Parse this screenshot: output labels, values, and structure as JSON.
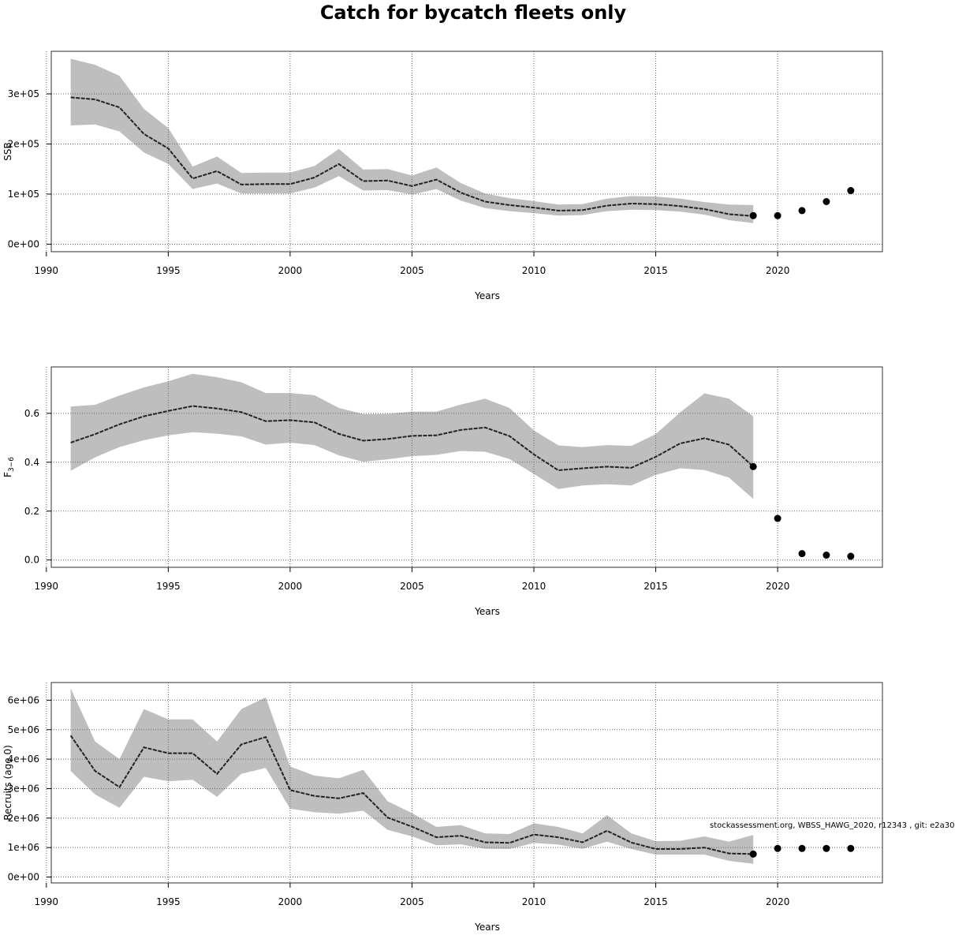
{
  "title": "Catch for bycatch fleets only",
  "credit": "stockassessment.org, WBSS_HAWG_2020, r12343 , git: e2a30",
  "colors": {
    "band": "#bebebe",
    "line": "#222222",
    "grid": "#666666",
    "frame": "#333333"
  },
  "chart_data": [
    {
      "type": "line",
      "name": "ssb",
      "xlabel": "Years",
      "ylabel": "SSB",
      "xlim": [
        1990.2,
        2024.3
      ],
      "ylim": [
        -15000,
        385000
      ],
      "xticks": [
        1990,
        1995,
        2000,
        2005,
        2010,
        2015,
        2020
      ],
      "xtick_labels": [
        "1990",
        "1995",
        "2000",
        "2005",
        "2010",
        "2015",
        "2020"
      ],
      "yticks": [
        0,
        100000,
        200000,
        300000
      ],
      "ytick_labels": [
        "0e+00",
        "1e+05",
        "2e+05",
        "3e+05"
      ],
      "grid": true,
      "x": [
        1991,
        1992,
        1993,
        1994,
        1995,
        1996,
        1997,
        1998,
        1999,
        2000,
        2001,
        2002,
        2003,
        2004,
        2005,
        2006,
        2007,
        2008,
        2009,
        2010,
        2011,
        2012,
        2013,
        2014,
        2015,
        2016,
        2017,
        2018,
        2019
      ],
      "estimate": [
        293000,
        289000,
        273000,
        220000,
        191000,
        131000,
        146000,
        119000,
        120000,
        120000,
        133000,
        160000,
        126000,
        127000,
        116000,
        129000,
        103000,
        85000,
        78000,
        73000,
        67000,
        68000,
        77000,
        81000,
        80000,
        76000,
        70000,
        60000,
        56000
      ],
      "lower": [
        237000,
        239000,
        225000,
        183000,
        160000,
        110000,
        121000,
        101000,
        101000,
        101000,
        113000,
        136000,
        107000,
        108000,
        99000,
        110000,
        87000,
        72000,
        66000,
        62000,
        57000,
        58000,
        66000,
        69000,
        68000,
        65000,
        59000,
        48000,
        42000
      ],
      "upper": [
        370000,
        358000,
        336000,
        270000,
        232000,
        155000,
        175000,
        142000,
        143000,
        143000,
        156000,
        190000,
        149000,
        150000,
        137000,
        153000,
        122000,
        101000,
        92000,
        86000,
        79000,
        80000,
        91000,
        96000,
        95000,
        91000,
        84000,
        79000,
        78000
      ],
      "forecast_x": [
        2019,
        2020,
        2021,
        2022,
        2023
      ],
      "forecast_y": [
        57000,
        57000,
        67000,
        85000,
        107000
      ]
    },
    {
      "type": "line",
      "name": "fbar",
      "xlabel": "Years",
      "ylabel": "F",
      "ylabel_sub": "3−6",
      "xlim": [
        1990.2,
        2024.3
      ],
      "ylim": [
        -0.03,
        0.79
      ],
      "xticks": [
        1990,
        1995,
        2000,
        2005,
        2010,
        2015,
        2020
      ],
      "xtick_labels": [
        "1990",
        "1995",
        "2000",
        "2005",
        "2010",
        "2015",
        "2020"
      ],
      "yticks": [
        0,
        0.2,
        0.4,
        0.6
      ],
      "ytick_labels": [
        "0.0",
        "0.2",
        "0.4",
        "0.6"
      ],
      "grid": true,
      "x": [
        1991,
        1992,
        1993,
        1994,
        1995,
        1996,
        1997,
        1998,
        1999,
        2000,
        2001,
        2002,
        2003,
        2004,
        2005,
        2006,
        2007,
        2008,
        2009,
        2010,
        2011,
        2012,
        2013,
        2014,
        2015,
        2016,
        2017,
        2018,
        2019
      ],
      "estimate": [
        0.48,
        0.515,
        0.555,
        0.588,
        0.61,
        0.63,
        0.62,
        0.605,
        0.568,
        0.572,
        0.563,
        0.516,
        0.488,
        0.495,
        0.508,
        0.51,
        0.532,
        0.542,
        0.507,
        0.432,
        0.367,
        0.375,
        0.382,
        0.377,
        0.422,
        0.477,
        0.498,
        0.472,
        0.382
      ],
      "lower": [
        0.365,
        0.42,
        0.462,
        0.49,
        0.51,
        0.523,
        0.517,
        0.506,
        0.472,
        0.48,
        0.47,
        0.428,
        0.402,
        0.412,
        0.425,
        0.43,
        0.446,
        0.443,
        0.413,
        0.352,
        0.29,
        0.305,
        0.31,
        0.305,
        0.348,
        0.375,
        0.368,
        0.337,
        0.25
      ],
      "upper": [
        0.628,
        0.635,
        0.673,
        0.706,
        0.731,
        0.762,
        0.748,
        0.727,
        0.683,
        0.683,
        0.674,
        0.622,
        0.597,
        0.598,
        0.607,
        0.607,
        0.636,
        0.66,
        0.622,
        0.53,
        0.469,
        0.462,
        0.47,
        0.467,
        0.515,
        0.604,
        0.682,
        0.66,
        0.588
      ],
      "forecast_x": [
        2019,
        2020,
        2021,
        2022,
        2023
      ],
      "forecast_y": [
        0.382,
        0.17,
        0.026,
        0.02,
        0.015
      ]
    },
    {
      "type": "line",
      "name": "recruits",
      "xlabel": "Years",
      "ylabel": "Recruits (age 0)",
      "xlim": [
        1990.2,
        2024.3
      ],
      "ylim": [
        -200000,
        6600000
      ],
      "xticks": [
        1990,
        1995,
        2000,
        2005,
        2010,
        2015,
        2020
      ],
      "xtick_labels": [
        "1990",
        "1995",
        "2000",
        "2005",
        "2010",
        "2015",
        "2020"
      ],
      "yticks": [
        0,
        1000000,
        2000000,
        3000000,
        4000000,
        5000000,
        6000000
      ],
      "ytick_labels": [
        "0e+00",
        "1e+06",
        "2e+06",
        "3e+06",
        "4e+06",
        "5e+06",
        "6e+06"
      ],
      "grid": true,
      "x": [
        1991,
        1992,
        1993,
        1994,
        1995,
        1996,
        1997,
        1998,
        1999,
        2000,
        2001,
        2002,
        2003,
        2004,
        2005,
        2006,
        2007,
        2008,
        2009,
        2010,
        2011,
        2012,
        2013,
        2014,
        2015,
        2016,
        2017,
        2018,
        2019
      ],
      "estimate": [
        4800000,
        3600000,
        3050000,
        4400000,
        4200000,
        4200000,
        3500000,
        4500000,
        4750000,
        2950000,
        2750000,
        2670000,
        2850000,
        2020000,
        1710000,
        1350000,
        1400000,
        1180000,
        1160000,
        1440000,
        1350000,
        1180000,
        1570000,
        1170000,
        950000,
        950000,
        1000000,
        800000,
        780000
      ],
      "lower": [
        3600000,
        2800000,
        2350000,
        3400000,
        3250000,
        3300000,
        2720000,
        3500000,
        3700000,
        2320000,
        2200000,
        2150000,
        2250000,
        1600000,
        1380000,
        1080000,
        1110000,
        960000,
        950000,
        1160000,
        1100000,
        960000,
        1200000,
        950000,
        760000,
        760000,
        760000,
        550000,
        450000
      ],
      "upper": [
        6400000,
        4600000,
        4000000,
        5700000,
        5350000,
        5350000,
        4600000,
        5700000,
        6100000,
        3750000,
        3440000,
        3350000,
        3640000,
        2570000,
        2170000,
        1700000,
        1760000,
        1480000,
        1460000,
        1820000,
        1700000,
        1480000,
        2100000,
        1480000,
        1220000,
        1230000,
        1380000,
        1200000,
        1430000
      ],
      "forecast_x": [
        2019,
        2020,
        2021,
        2022,
        2023
      ],
      "forecast_y": [
        780000,
        970000,
        970000,
        970000,
        970000
      ]
    }
  ]
}
